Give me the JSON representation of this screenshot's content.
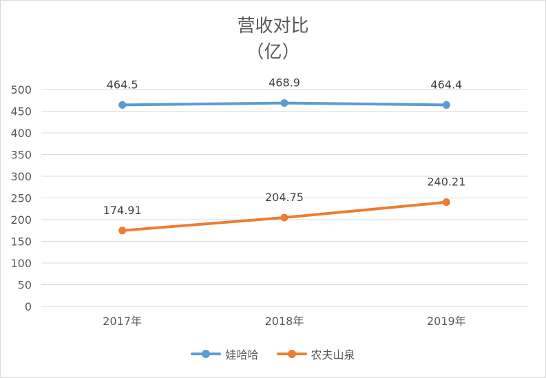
{
  "title_line1": "营收对比",
  "title_line2": "（亿）",
  "chart_data": {
    "type": "line",
    "categories": [
      "2017年",
      "2018年",
      "2019年"
    ],
    "series": [
      {
        "name": "娃哈哈",
        "values": [
          464.5,
          468.9,
          464.4
        ],
        "labels": [
          "464.5",
          "468.9",
          "464.4"
        ],
        "color": "#5b9bd5"
      },
      {
        "name": "农夫山泉",
        "values": [
          174.91,
          204.75,
          240.21
        ],
        "labels": [
          "174.91",
          "204.75",
          "240.21"
        ],
        "color": "#ed7d31"
      }
    ],
    "ylim": [
      0,
      500
    ],
    "yticks": [
      0,
      50,
      100,
      150,
      200,
      250,
      300,
      350,
      400,
      450,
      500
    ],
    "grid": true,
    "legend": "bottom"
  }
}
